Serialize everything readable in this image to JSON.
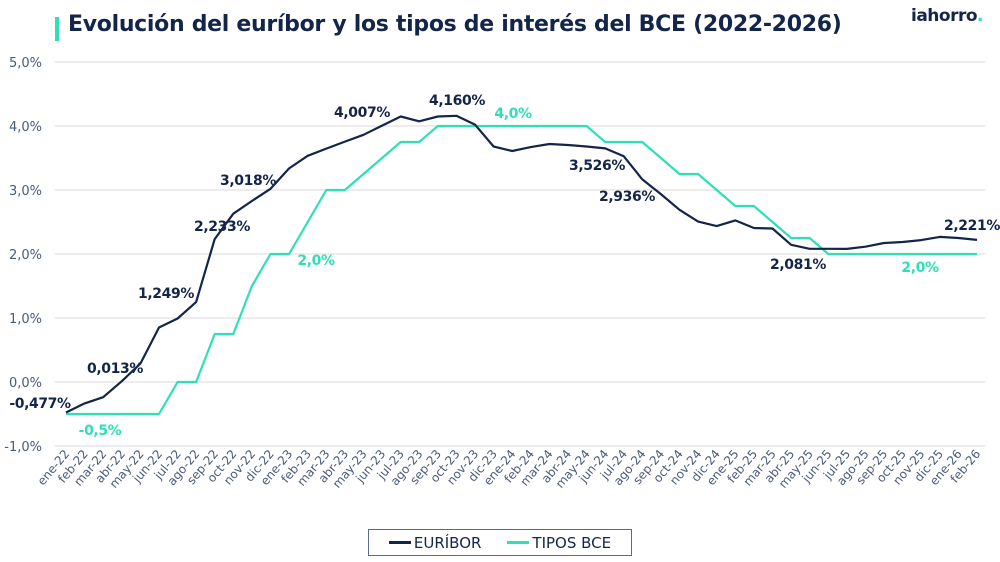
{
  "header": {
    "title": "Evolución del euríbor y los tipos de interés del BCE (2022-2026)",
    "logo": "iahorro."
  },
  "colors": {
    "euribor": "#14254a",
    "bce": "#2fe0b6",
    "grid": "#e6e6e6",
    "axis_text": "#4a5a78"
  },
  "chart_data": {
    "type": "line",
    "title": "Evolución del euríbor y los tipos de interés del BCE (2022-2026)",
    "xlabel": "",
    "ylabel": "",
    "ylim": [
      -1.0,
      5.0
    ],
    "yticks": [
      -1.0,
      0.0,
      1.0,
      2.0,
      3.0,
      4.0,
      5.0
    ],
    "ytick_labels": [
      "-1,0%",
      "0,0%",
      "1,0%",
      "2,0%",
      "3,0%",
      "4,0%",
      "5,0%"
    ],
    "grid": true,
    "legend": "bottom-center",
    "categories": [
      "ene-22",
      "feb-22",
      "mar-22",
      "abr-22",
      "may-22",
      "jun-22",
      "jul-22",
      "ago-22",
      "sep-22",
      "oct-22",
      "nov-22",
      "dic-22",
      "ene-23",
      "feb-23",
      "mar-23",
      "abr-23",
      "may-23",
      "jun-23",
      "jul-23",
      "ago-23",
      "sep-23",
      "oct-23",
      "nov-23",
      "dic-23",
      "ene-24",
      "feb-24",
      "mar-24",
      "abr-24",
      "may-24",
      "jun-24",
      "jul-24",
      "ago-24",
      "sep-24",
      "oct-24",
      "nov-24",
      "dic-24",
      "ene-25",
      "feb-25",
      "mar-25",
      "abr-25",
      "may-25",
      "jun-25",
      "jul-25",
      "ago-25",
      "sep-25",
      "oct-25",
      "nov-25",
      "dic-25",
      "ene-26",
      "feb-26"
    ],
    "series": [
      {
        "name": "EURÍBOR",
        "values": [
          -0.477,
          -0.335,
          -0.237,
          0.013,
          0.287,
          0.852,
          0.992,
          1.249,
          2.233,
          2.629,
          2.828,
          3.018,
          3.337,
          3.534,
          3.647,
          3.757,
          3.862,
          4.007,
          4.149,
          4.073,
          4.149,
          4.16,
          4.022,
          3.679,
          3.609,
          3.671,
          3.718,
          3.703,
          3.68,
          3.65,
          3.526,
          3.166,
          2.936,
          2.691,
          2.506,
          2.436,
          2.525,
          2.407,
          2.398,
          2.143,
          2.081,
          2.081,
          2.079,
          2.114,
          2.172,
          2.187,
          2.217,
          2.267,
          2.25,
          2.221
        ]
      },
      {
        "name": "TIPOS BCE",
        "values": [
          -0.5,
          -0.5,
          -0.5,
          -0.5,
          -0.5,
          -0.5,
          0.0,
          0.0,
          0.75,
          0.75,
          1.5,
          2.0,
          2.0,
          2.5,
          3.0,
          3.0,
          3.25,
          3.5,
          3.75,
          3.75,
          4.0,
          4.0,
          4.0,
          4.0,
          4.0,
          4.0,
          4.0,
          4.0,
          4.0,
          3.75,
          3.75,
          3.75,
          3.5,
          3.25,
          3.25,
          3.0,
          2.75,
          2.75,
          2.5,
          2.25,
          2.25,
          2.0,
          2.0,
          2.0,
          2.0,
          2.0,
          2.0,
          2.0,
          2.0,
          2.0
        ]
      }
    ],
    "annotations": [
      {
        "series": "EURÍBOR",
        "category": "ene-22",
        "text": "-0,477%"
      },
      {
        "series": "EURÍBOR",
        "category": "abr-22",
        "text": "0,013%"
      },
      {
        "series": "EURÍBOR",
        "category": "ago-22",
        "text": "1,249%"
      },
      {
        "series": "EURÍBOR",
        "category": "sep-22",
        "text": "2,233%"
      },
      {
        "series": "EURÍBOR",
        "category": "dic-22",
        "text": "3,018%"
      },
      {
        "series": "EURÍBOR",
        "category": "jun-23",
        "text": "4,007%"
      },
      {
        "series": "EURÍBOR",
        "category": "oct-23",
        "text": "4,160%"
      },
      {
        "series": "EURÍBOR",
        "category": "jul-24",
        "text": "3,526%"
      },
      {
        "series": "EURÍBOR",
        "category": "sep-24",
        "text": "2,936%"
      },
      {
        "series": "EURÍBOR",
        "category": "may-25",
        "text": "2,081%"
      },
      {
        "series": "EURÍBOR",
        "category": "feb-26",
        "text": "2,221%"
      },
      {
        "series": "TIPOS BCE",
        "category": "feb-22",
        "text": "-0,5%"
      },
      {
        "series": "TIPOS BCE",
        "category": "dic-22",
        "text": "2,0%"
      },
      {
        "series": "TIPOS BCE",
        "category": "sep-23",
        "text": "4,0%"
      },
      {
        "series": "TIPOS BCE",
        "category": "jun-25",
        "text": "2,0%"
      }
    ]
  }
}
